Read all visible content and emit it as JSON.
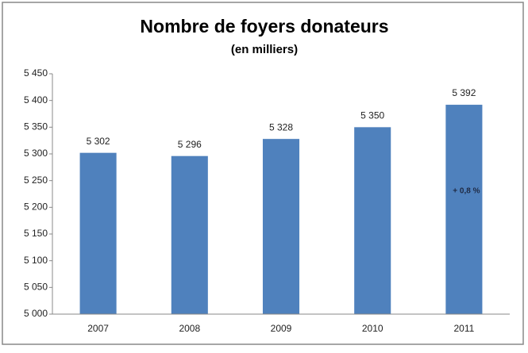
{
  "chart_data": {
    "type": "bar",
    "title": "Nombre de foyers donateurs",
    "subtitle": "(en milliers)",
    "categories": [
      "2007",
      "2008",
      "2009",
      "2010",
      "2011"
    ],
    "values": [
      5302,
      5296,
      5328,
      5350,
      5392
    ],
    "value_labels": [
      "5 302",
      "5 296",
      "5 328",
      "5 350",
      "5 392"
    ],
    "color": "#4f81bd",
    "annotation": "+ 0,8 %",
    "ylim": [
      5000,
      5450
    ],
    "yticks": [
      {
        "value": 5000,
        "label": "5 000"
      },
      {
        "value": 5050,
        "label": "5 050"
      },
      {
        "value": 5100,
        "label": "5 100"
      },
      {
        "value": 5150,
        "label": "5 150"
      },
      {
        "value": 5200,
        "label": "5 200"
      },
      {
        "value": 5250,
        "label": "5 250"
      },
      {
        "value": 5300,
        "label": "5 300"
      },
      {
        "value": 5350,
        "label": "5 350"
      },
      {
        "value": 5400,
        "label": "5 400"
      },
      {
        "value": 5450,
        "label": "5 450"
      }
    ],
    "grid": false
  }
}
